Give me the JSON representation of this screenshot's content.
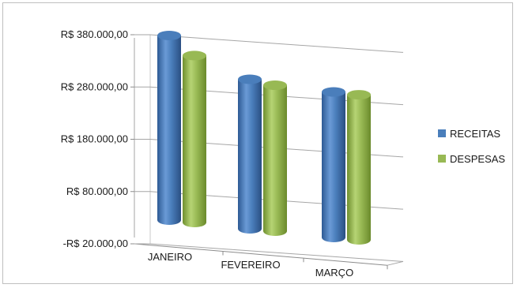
{
  "chart_data": {
    "type": "bar",
    "style": "3d-cylinder",
    "categories": [
      "JANEIRO",
      "FEVEREIRO",
      "MARÇO"
    ],
    "series": [
      {
        "name": "RECEITAS",
        "color": "#4a7ebb",
        "values": [
          378000,
          305000,
          292000
        ]
      },
      {
        "name": "DESPESAS",
        "color": "#98b954",
        "values": [
          343000,
          297000,
          290000
        ]
      }
    ],
    "y_ticks": [
      -20000,
      80000,
      180000,
      280000,
      380000
    ],
    "y_tick_labels": [
      "-R$ 20.000,00",
      "R$ 80.000,00",
      "R$ 180.000,00",
      "R$ 280.000,00",
      "R$ 380.000,00"
    ],
    "ylim": [
      -20000,
      380000
    ],
    "grid": true,
    "legend_position": "right"
  }
}
